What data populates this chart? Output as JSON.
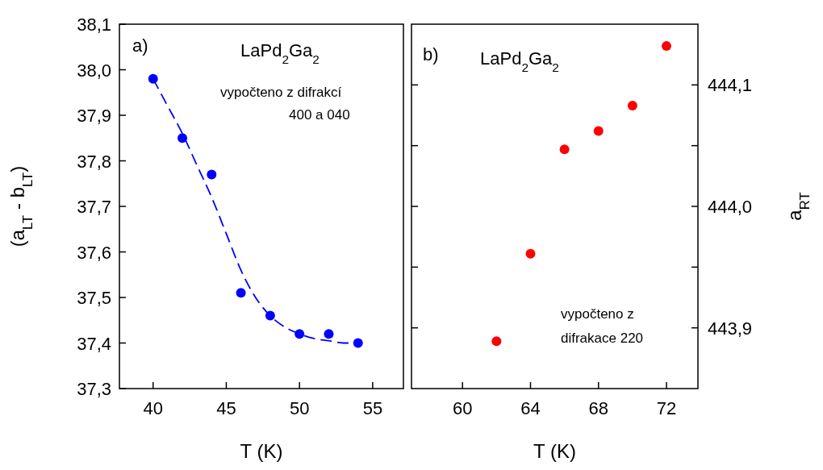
{
  "chart_data": [
    {
      "type": "scatter",
      "xlabel": "T (K)",
      "ylabel": "(a$_{LT}$ - b$_{LT}$)",
      "annotations": [
        "a)",
        "LaPd$_{2}$Ga$_{2}$",
        "vypočteno z difrakcí",
        "400 a 040"
      ],
      "marker": "circle",
      "xlim": [
        37.7,
        57.1
      ],
      "xticks": [
        40,
        45,
        50,
        55
      ],
      "ylim": [
        37.3,
        38.1
      ],
      "yticks": [
        {
          "value": 37.3,
          "label": "37,3"
        },
        {
          "value": 37.4,
          "label": "37,4"
        },
        {
          "value": 37.5,
          "label": "37,5"
        },
        {
          "value": 37.6,
          "label": "37,6"
        },
        {
          "value": 37.7,
          "label": "37,7"
        },
        {
          "value": 37.8,
          "label": "37,8"
        },
        {
          "value": 37.9,
          "label": "37,9"
        },
        {
          "value": 38.0,
          "label": "38,0"
        },
        {
          "value": 38.1,
          "label": "38,1"
        }
      ],
      "series": [
        {
          "color": "#0000ff",
          "x": [
            40,
            42,
            44,
            46,
            48,
            50,
            52,
            54
          ],
          "values": [
            37.98,
            37.85,
            37.77,
            37.51,
            37.46,
            37.42,
            37.42,
            37.4
          ]
        },
        {
          "type": "line",
          "color": "#0000ff",
          "line_style": "dashed",
          "marker": "none",
          "x": [
            40,
            41,
            42,
            43,
            44,
            45,
            46,
            47,
            48,
            49,
            50,
            51,
            52,
            53,
            54
          ],
          "values": [
            37.98,
            37.92,
            37.86,
            37.79,
            37.72,
            37.64,
            37.56,
            37.5,
            37.46,
            37.435,
            37.42,
            37.41,
            37.405,
            37.4,
            37.4
          ]
        }
      ]
    },
    {
      "type": "scatter",
      "xlabel": "T (K)",
      "y2label": "a$_{RT}$",
      "annotations": [
        "b)",
        "LaPd$_{2}$Ga$_{2}$",
        "vypočteno z",
        "difrakace  220"
      ],
      "marker": "circle",
      "xlim": [
        57.0,
        73.85
      ],
      "xticks": [
        60,
        64,
        68,
        72
      ],
      "y2lim": [
        443.85,
        444.15
      ],
      "y2ticks": [
        {
          "value": 443.9,
          "label": "443,9"
        },
        {
          "value": 443.95,
          "label": null
        },
        {
          "value": 444.0,
          "label": "444,0"
        },
        {
          "value": 444.05,
          "label": null
        },
        {
          "value": 444.1,
          "label": "444,1"
        }
      ],
      "series": [
        {
          "axis": "y2",
          "color": "#ff0000",
          "x": [
            62,
            64,
            66,
            68,
            70,
            72
          ],
          "values": [
            443.889,
            443.961,
            444.047,
            444.062,
            444.083,
            444.132
          ]
        }
      ]
    }
  ]
}
